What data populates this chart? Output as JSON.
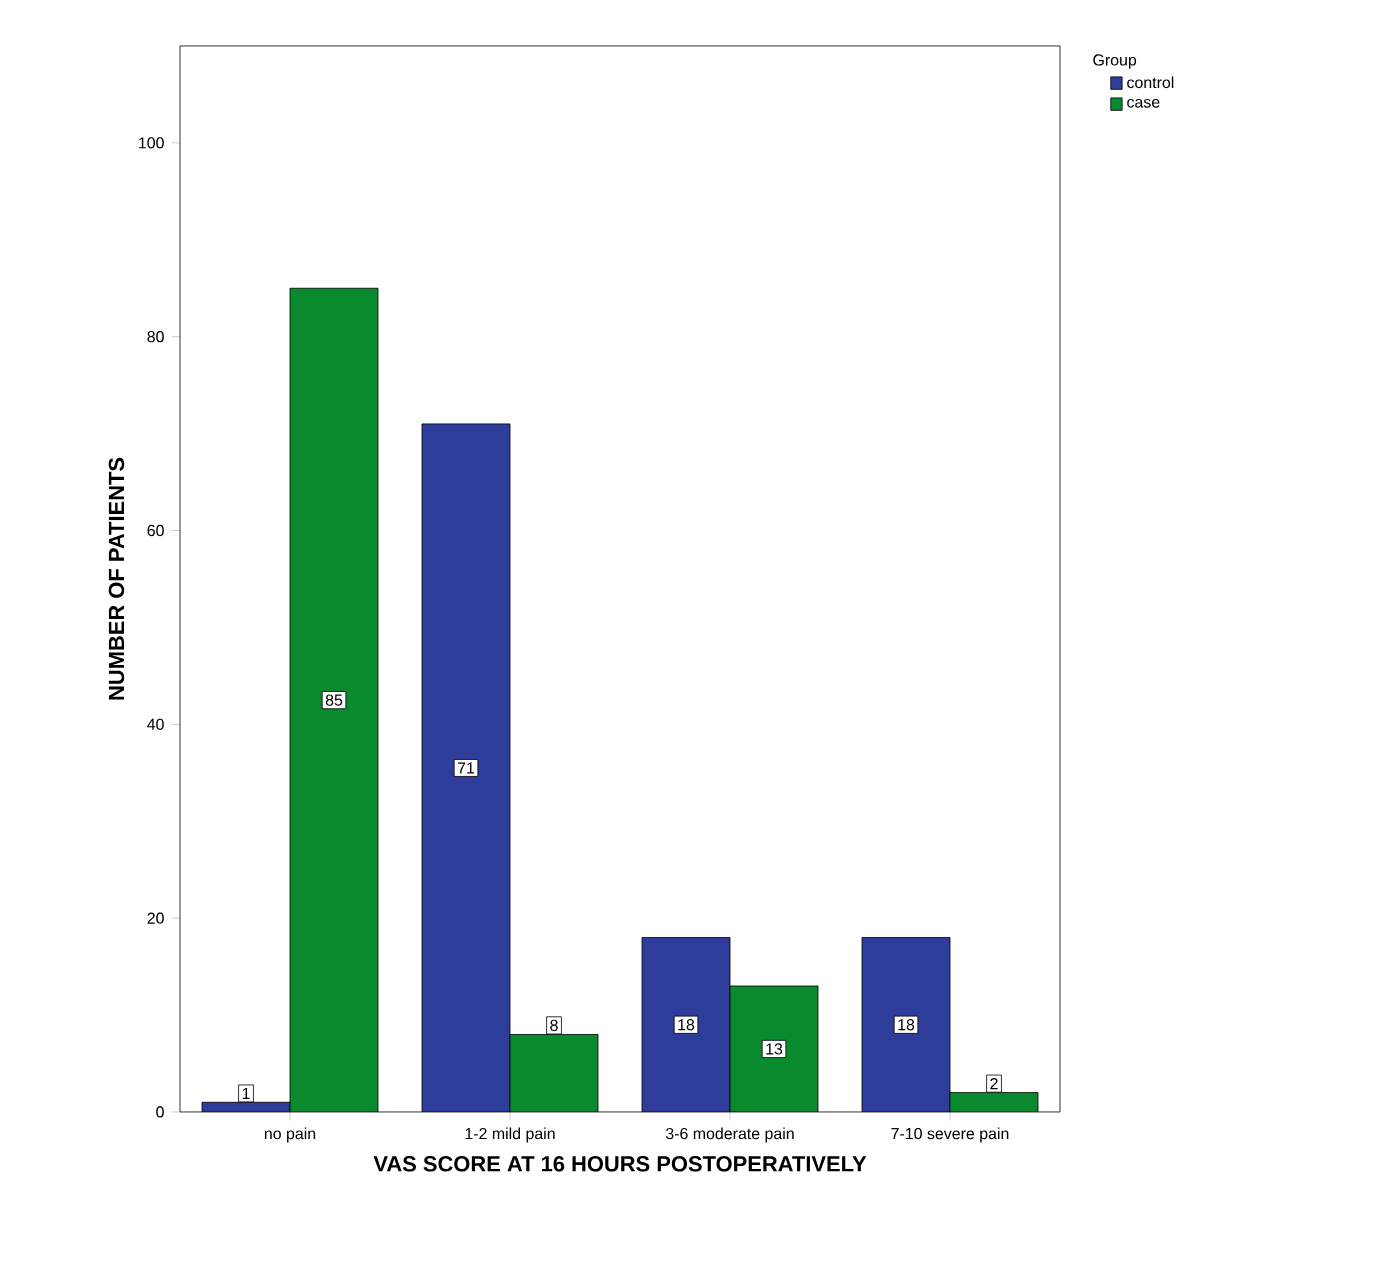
{
  "chart_data": {
    "type": "bar",
    "xlabel": "VAS SCORE AT 16 HOURS POSTOPERATIVELY",
    "ylabel": "NUMBER OF PATIENTS",
    "legend_title": "Group",
    "categories": [
      "no pain",
      "1-2 mild pain",
      "3-6 moderate pain",
      "7-10 severe pain"
    ],
    "series": [
      {
        "name": "control",
        "color": "#2e3d9a",
        "values": [
          1,
          71,
          18,
          18
        ]
      },
      {
        "name": "case",
        "color": "#0a8a2e",
        "values": [
          85,
          8,
          13,
          2
        ]
      }
    ],
    "ylim": [
      0,
      110
    ],
    "yticks": [
      0,
      20,
      40,
      60,
      80,
      100
    ],
    "data_labels": true,
    "legend": "top right",
    "grid": false
  }
}
